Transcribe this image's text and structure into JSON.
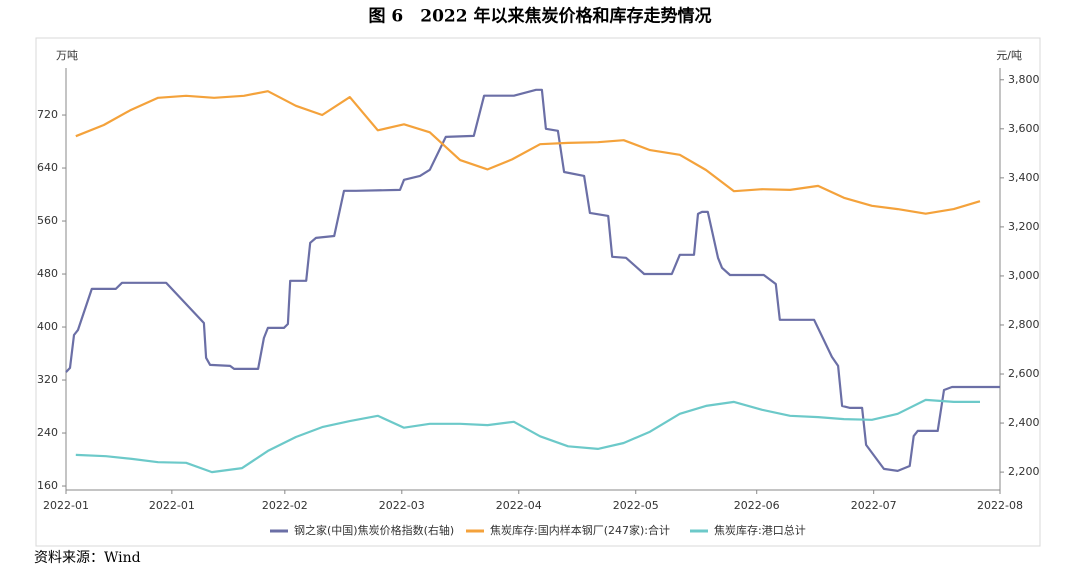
{
  "chart_data": {
    "type": "line",
    "title": "图 6　2022 年以来焦炭价格和库存走势情况",
    "note": "资料来源：Wind",
    "y_label": "万吨",
    "y2_label": "元/吨",
    "xlim": [
      0,
      210
    ],
    "xticks": [
      {
        "value": 0,
        "label": "2022-01"
      },
      {
        "value": 23.8,
        "label": "2022-01"
      },
      {
        "value": 49.2,
        "label": "2022-02"
      },
      {
        "value": 75.5,
        "label": "2022-03"
      },
      {
        "value": 101.8,
        "label": "2022-04"
      },
      {
        "value": 128.1,
        "label": "2022-05"
      },
      {
        "value": 155.3,
        "label": "2022-06"
      },
      {
        "value": 181.6,
        "label": "2022-07"
      },
      {
        "value": 210,
        "label": "2022-08"
      }
    ],
    "ylim": [
      154,
      791
    ],
    "yticks": [
      160,
      240,
      320,
      400,
      480,
      560,
      640,
      720
    ],
    "y2lim": [
      2127,
      3848
    ],
    "y2ticks": [
      {
        "value": 2200,
        "label": "2,200"
      },
      {
        "value": 2400,
        "label": "2,400"
      },
      {
        "value": 2600,
        "label": "2,600"
      },
      {
        "value": 2800,
        "label": "2,800"
      },
      {
        "value": 3000,
        "label": "3,000"
      },
      {
        "value": 3200,
        "label": "3,200"
      },
      {
        "value": 3400,
        "label": "3,400"
      },
      {
        "value": 3600,
        "label": "3,600"
      },
      {
        "value": 3800,
        "label": "3,800"
      }
    ],
    "grid": false,
    "legend": "bottom",
    "series": [
      {
        "name": "钢之家(中国)焦炭价格指数(右轴)",
        "color": "#6b6fa6",
        "axis": "y2",
        "x": [
          0,
          0.9,
          1.8,
          2.7,
          5.8,
          11.2,
          12.6,
          22.5,
          31,
          31.5,
          32.4,
          36.9,
          37.8,
          43.2,
          44.5,
          45.4,
          49,
          49.9,
          50.4,
          54,
          54.9,
          56.2,
          60.3,
          62.5,
          65.2,
          75.1,
          76,
          79.6,
          81.8,
          85.4,
          91.7,
          94,
          100.7,
          105.7,
          107,
          107.9,
          110.6,
          112,
          116.5,
          117.8,
          121.9,
          122.8,
          125.9,
          130,
          136.2,
          138,
          141.2,
          142.1,
          143,
          144.3,
          146.6,
          147.5,
          149.3,
          156.9,
          159.6,
          160.5,
          168.2,
          172.2,
          173.6,
          174.5,
          176.3,
          179,
          179.9,
          183.9,
          187,
          189.7,
          190.6,
          191.5,
          196,
          197.4,
          199.2,
          210
        ],
        "values": [
          2608,
          2625,
          2759,
          2780,
          2947,
          2947,
          2972,
          2972,
          2808,
          2666,
          2637,
          2633,
          2621,
          2621,
          2747,
          2788,
          2788,
          2804,
          2980,
          2980,
          3135,
          3155,
          3163,
          3347,
          3347,
          3351,
          3392,
          3408,
          3433,
          3567,
          3571,
          3735,
          3735,
          3759,
          3759,
          3600,
          3592,
          3424,
          3408,
          3257,
          3245,
          3078,
          3074,
          3008,
          3008,
          3086,
          3086,
          3253,
          3261,
          3261,
          3074,
          3033,
          3004,
          3004,
          2967,
          2821,
          2821,
          2670,
          2633,
          2470,
          2462,
          2462,
          2311,
          2213,
          2205,
          2225,
          2347,
          2368,
          2368,
          2535,
          2547,
          2547
        ]
      },
      {
        "name": "焦炭库存:国内样本钢厂(247家):合计",
        "color": "#f4a23b",
        "x": [
          2.2,
          8.5,
          14.4,
          20.7,
          27,
          33.3,
          40,
          45.4,
          51.7,
          57.6,
          63.8,
          70.1,
          76,
          81.8,
          88.6,
          94.8,
          100.3,
          106.6,
          112.9,
          119.6,
          125.4,
          131.3,
          138,
          143.9,
          150.2,
          156.5,
          162.8,
          169.1,
          174.9,
          181.2,
          187,
          193.3,
          199.6,
          205.5
        ],
        "values": [
          688,
          705,
          727,
          746,
          749,
          746,
          749,
          756,
          734,
          720,
          747,
          697,
          706,
          694,
          652,
          638,
          653,
          676,
          678,
          679,
          682,
          667,
          660,
          637,
          605,
          608,
          607,
          613,
          595,
          583,
          578,
          571,
          578,
          590
        ]
      },
      {
        "name": "焦炭库存:港口总计",
        "color": "#6cc9c9",
        "x": [
          2.2,
          9,
          14.8,
          20.7,
          27,
          32.8,
          39.6,
          45.4,
          51.7,
          57.6,
          63.8,
          70.1,
          76,
          81.8,
          88.6,
          94.8,
          100.7,
          106.6,
          112.9,
          119.6,
          125.4,
          131.3,
          138,
          143.9,
          150.2,
          156.5,
          162.8,
          169.1,
          174.9,
          181.2,
          187,
          193.3,
          199.6,
          205.5
        ],
        "values": [
          207,
          205,
          201,
          196,
          195,
          181,
          187,
          213,
          234,
          249,
          258,
          266,
          248,
          254,
          254,
          252,
          257,
          235,
          220,
          216,
          225,
          242,
          269,
          281,
          287,
          275,
          266,
          264,
          261,
          260,
          269,
          290,
          287,
          287
        ]
      }
    ]
  }
}
